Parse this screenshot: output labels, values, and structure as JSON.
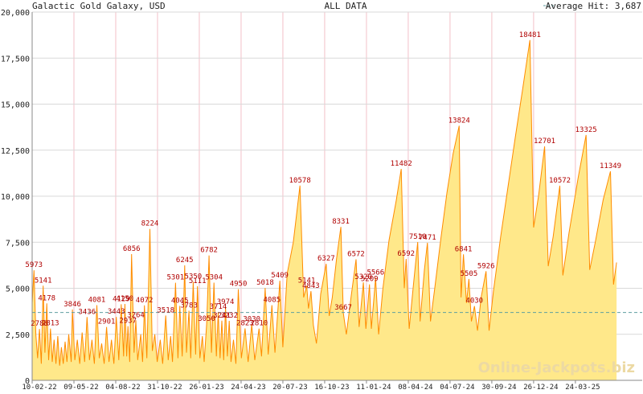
{
  "header": {
    "left": "Galactic Gold Galaxy, USD",
    "center": "ALL DATA",
    "right": "Average Hit: 3,687"
  },
  "watermark": "Online-Jackpots.biz",
  "colors": {
    "fill": "#ffe88a",
    "line": "#ff8c00",
    "avg": "#5f9ea0",
    "label": "#b00000",
    "grid_h": "#d9d9d9",
    "grid_v": "#f3c0c8",
    "watermark": "#ecd9a3"
  },
  "chart_data": {
    "type": "area",
    "ylim": [
      0,
      20000
    ],
    "y_ticks": [
      "0",
      "2,500",
      "5,000",
      "7,500",
      "10,000",
      "12,500",
      "15,000",
      "17,500",
      "20,000"
    ],
    "y_tick_values": [
      0,
      2500,
      5000,
      7500,
      10000,
      12500,
      15000,
      17500,
      20000
    ],
    "x_ticks": [
      "10-02-22",
      "09-05-22",
      "04-08-22",
      "31-10-22",
      "26-01-23",
      "24-04-23",
      "20-07-23",
      "16-10-23",
      "11-01-24",
      "08-04-24",
      "04-07-24",
      "30-09-24",
      "26-12-24",
      "24-03-25"
    ],
    "x_range": [
      0,
      100
    ],
    "x_tick_positions": [
      0,
      6.85,
      13.7,
      20.55,
      27.4,
      34.25,
      41.1,
      47.95,
      54.8,
      61.65,
      68.5,
      75.35,
      82.2,
      89.05
    ],
    "average": 3687,
    "grid": true,
    "series": [
      {
        "values": [
          [
            0,
            4200
          ],
          [
            0.3,
            5973
          ],
          [
            0.6,
            2500
          ],
          [
            0.9,
            1200
          ],
          [
            1.2,
            2788
          ],
          [
            1.5,
            900
          ],
          [
            1.8,
            5141
          ],
          [
            2.1,
            1500
          ],
          [
            2.4,
            4178
          ],
          [
            2.7,
            1100
          ],
          [
            3.0,
            2813
          ],
          [
            3.3,
            1000
          ],
          [
            3.6,
            2200
          ],
          [
            3.9,
            900
          ],
          [
            4.2,
            2400
          ],
          [
            4.5,
            800
          ],
          [
            4.8,
            1800
          ],
          [
            5.1,
            900
          ],
          [
            5.4,
            2100
          ],
          [
            5.7,
            1000
          ],
          [
            6.0,
            2500
          ],
          [
            6.4,
            1000
          ],
          [
            6.6,
            3846
          ],
          [
            7.0,
            1100
          ],
          [
            7.4,
            2200
          ],
          [
            7.8,
            900
          ],
          [
            8.2,
            2600
          ],
          [
            8.6,
            1000
          ],
          [
            9.0,
            3436
          ],
          [
            9.4,
            1100
          ],
          [
            9.8,
            2200
          ],
          [
            10.2,
            900
          ],
          [
            10.6,
            4081
          ],
          [
            11.0,
            1200
          ],
          [
            11.4,
            2000
          ],
          [
            11.8,
            900
          ],
          [
            12.2,
            2901
          ],
          [
            12.6,
            1000
          ],
          [
            13.0,
            2200
          ],
          [
            13.4,
            900
          ],
          [
            13.8,
            3443
          ],
          [
            14.2,
            1100
          ],
          [
            14.6,
            4129
          ],
          [
            15.0,
            1300
          ],
          [
            15.2,
            4150
          ],
          [
            15.5,
            1300
          ],
          [
            15.7,
            2937
          ],
          [
            16.0,
            1000
          ],
          [
            16.3,
            6856
          ],
          [
            16.7,
            1500
          ],
          [
            17.0,
            3264
          ],
          [
            17.3,
            1100
          ],
          [
            17.8,
            2500
          ],
          [
            18.1,
            1000
          ],
          [
            18.4,
            4072
          ],
          [
            18.8,
            1200
          ],
          [
            19.3,
            8224
          ],
          [
            19.7,
            1600
          ],
          [
            20.1,
            2500
          ],
          [
            20.5,
            1000
          ],
          [
            21.0,
            2200
          ],
          [
            21.4,
            900
          ],
          [
            21.9,
            3518
          ],
          [
            22.3,
            1100
          ],
          [
            22.7,
            2400
          ],
          [
            23.0,
            1000
          ],
          [
            23.5,
            5301
          ],
          [
            23.9,
            1200
          ],
          [
            24.2,
            4045
          ],
          [
            24.6,
            1300
          ],
          [
            25.0,
            6245
          ],
          [
            25.3,
            1500
          ],
          [
            25.7,
            3783
          ],
          [
            26.0,
            1200
          ],
          [
            26.4,
            5350
          ],
          [
            26.8,
            1400
          ],
          [
            27.1,
            5111
          ],
          [
            27.5,
            1200
          ],
          [
            27.9,
            2400
          ],
          [
            28.2,
            1000
          ],
          [
            28.6,
            3050
          ],
          [
            29.0,
            6782
          ],
          [
            29.4,
            1500
          ],
          [
            29.8,
            5304
          ],
          [
            30.2,
            1300
          ],
          [
            30.5,
            3714
          ],
          [
            30.8,
            1200
          ],
          [
            31.1,
            3241
          ],
          [
            31.4,
            1100
          ],
          [
            31.7,
            3974
          ],
          [
            32.0,
            1300
          ],
          [
            32.3,
            3232
          ],
          [
            32.6,
            1000
          ],
          [
            33.0,
            2200
          ],
          [
            33.4,
            900
          ],
          [
            33.8,
            4950
          ],
          [
            34.3,
            1200
          ],
          [
            34.9,
            2823
          ],
          [
            35.4,
            1000
          ],
          [
            36.0,
            3030
          ],
          [
            36.5,
            1100
          ],
          [
            37.2,
            2810
          ],
          [
            37.6,
            1300
          ],
          [
            38.2,
            5018
          ],
          [
            38.7,
            1400
          ],
          [
            39.3,
            4085
          ],
          [
            39.8,
            1500
          ],
          [
            40.6,
            5409
          ],
          [
            41.1,
            1800
          ],
          [
            41.8,
            5800
          ],
          [
            42.8,
            7500
          ],
          [
            43.9,
            10578
          ],
          [
            44.5,
            4500
          ],
          [
            45.0,
            5141
          ],
          [
            45.3,
            3900
          ],
          [
            45.7,
            4843
          ],
          [
            46.1,
            3000
          ],
          [
            46.6,
            2000
          ],
          [
            47.3,
            4700
          ],
          [
            48.2,
            6327
          ],
          [
            48.7,
            3500
          ],
          [
            49.2,
            4500
          ],
          [
            49.9,
            6600
          ],
          [
            50.6,
            8331
          ],
          [
            51.0,
            3667
          ],
          [
            51.5,
            2500
          ],
          [
            52.3,
            4600
          ],
          [
            53.1,
            6572
          ],
          [
            53.6,
            2900
          ],
          [
            54.3,
            5320
          ],
          [
            54.7,
            2800
          ],
          [
            55.3,
            5209
          ],
          [
            55.6,
            2800
          ],
          [
            56.3,
            5566
          ],
          [
            56.8,
            2500
          ],
          [
            57.5,
            5000
          ],
          [
            58.5,
            7600
          ],
          [
            59.7,
            9800
          ],
          [
            60.5,
            11482
          ],
          [
            61.0,
            5000
          ],
          [
            61.3,
            6592
          ],
          [
            61.8,
            2800
          ],
          [
            62.5,
            5200
          ],
          [
            63.2,
            7510
          ],
          [
            63.6,
            3200
          ],
          [
            64.3,
            6000
          ],
          [
            64.8,
            7471
          ],
          [
            65.3,
            3200
          ],
          [
            66.0,
            5000
          ],
          [
            67.0,
            7700
          ],
          [
            68.0,
            10200
          ],
          [
            69.0,
            12300
          ],
          [
            70.0,
            13824
          ],
          [
            70.3,
            4500
          ],
          [
            70.7,
            6841
          ],
          [
            71.2,
            4200
          ],
          [
            71.6,
            5505
          ],
          [
            72.0,
            3200
          ],
          [
            72.5,
            4030
          ],
          [
            73.0,
            2700
          ],
          [
            73.6,
            4500
          ],
          [
            74.4,
            5926
          ],
          [
            74.9,
            2700
          ],
          [
            75.6,
            4800
          ],
          [
            76.8,
            7800
          ],
          [
            78.0,
            10500
          ],
          [
            79.2,
            13200
          ],
          [
            80.4,
            15800
          ],
          [
            81.6,
            18481
          ],
          [
            82.2,
            8300
          ],
          [
            83.0,
            10000
          ],
          [
            84.0,
            12701
          ],
          [
            84.6,
            6200
          ],
          [
            85.4,
            7800
          ],
          [
            86.5,
            10572
          ],
          [
            87.0,
            5700
          ],
          [
            88.0,
            8000
          ],
          [
            89.5,
            11000
          ],
          [
            90.8,
            13325
          ],
          [
            91.4,
            6000
          ],
          [
            92.3,
            7500
          ],
          [
            93.6,
            9800
          ],
          [
            94.8,
            11349
          ],
          [
            95.3,
            5200
          ],
          [
            95.8,
            6400
          ]
        ]
      }
    ],
    "annotations": [
      {
        "x": 0.3,
        "y": 5973,
        "text": "5973"
      },
      {
        "x": 1.8,
        "y": 5141,
        "text": "5141"
      },
      {
        "x": 2.4,
        "y": 4178,
        "text": "4178"
      },
      {
        "x": 1.2,
        "y": 2788,
        "text": "2788"
      },
      {
        "x": 3.0,
        "y": 2813,
        "text": "2813"
      },
      {
        "x": 6.6,
        "y": 3846,
        "text": "3846"
      },
      {
        "x": 9.0,
        "y": 3436,
        "text": "3436"
      },
      {
        "x": 10.6,
        "y": 4081,
        "text": "4081"
      },
      {
        "x": 12.2,
        "y": 2901,
        "text": "2901"
      },
      {
        "x": 13.8,
        "y": 3443,
        "text": "3443"
      },
      {
        "x": 14.6,
        "y": 4129,
        "text": "4129"
      },
      {
        "x": 15.2,
        "y": 4150,
        "text": "4150"
      },
      {
        "x": 15.7,
        "y": 2937,
        "text": "2937"
      },
      {
        "x": 16.3,
        "y": 6856,
        "text": "6856"
      },
      {
        "x": 17.0,
        "y": 3264,
        "text": "3264"
      },
      {
        "x": 18.4,
        "y": 4072,
        "text": "4072"
      },
      {
        "x": 19.3,
        "y": 8224,
        "text": "8224"
      },
      {
        "x": 21.9,
        "y": 3518,
        "text": "3518"
      },
      {
        "x": 23.5,
        "y": 5301,
        "text": "5301"
      },
      {
        "x": 24.2,
        "y": 4045,
        "text": "4045"
      },
      {
        "x": 25.0,
        "y": 6245,
        "text": "6245"
      },
      {
        "x": 25.7,
        "y": 3783,
        "text": "3783"
      },
      {
        "x": 26.4,
        "y": 5350,
        "text": "5350"
      },
      {
        "x": 27.1,
        "y": 5111,
        "text": "5111"
      },
      {
        "x": 28.6,
        "y": 3050,
        "text": "3050"
      },
      {
        "x": 29.0,
        "y": 6782,
        "text": "6782"
      },
      {
        "x": 29.8,
        "y": 5304,
        "text": "5304"
      },
      {
        "x": 30.5,
        "y": 3714,
        "text": "3714"
      },
      {
        "x": 31.1,
        "y": 3241,
        "text": "3241"
      },
      {
        "x": 31.7,
        "y": 3974,
        "text": "3974"
      },
      {
        "x": 32.3,
        "y": 3232,
        "text": "3232"
      },
      {
        "x": 33.8,
        "y": 4950,
        "text": "4950"
      },
      {
        "x": 34.9,
        "y": 2823,
        "text": "2823"
      },
      {
        "x": 36.0,
        "y": 3030,
        "text": "3030"
      },
      {
        "x": 37.2,
        "y": 2810,
        "text": "2810"
      },
      {
        "x": 38.2,
        "y": 5018,
        "text": "5018"
      },
      {
        "x": 39.3,
        "y": 4085,
        "text": "4085"
      },
      {
        "x": 40.6,
        "y": 5409,
        "text": "5409"
      },
      {
        "x": 43.9,
        "y": 10578,
        "text": "10578"
      },
      {
        "x": 45.0,
        "y": 5141,
        "text": "5141"
      },
      {
        "x": 45.7,
        "y": 4843,
        "text": "4843"
      },
      {
        "x": 48.2,
        "y": 6327,
        "text": "6327"
      },
      {
        "x": 50.6,
        "y": 8331,
        "text": "8331"
      },
      {
        "x": 51.0,
        "y": 3667,
        "text": "3667"
      },
      {
        "x": 53.1,
        "y": 6572,
        "text": "6572"
      },
      {
        "x": 54.3,
        "y": 5320,
        "text": "5320"
      },
      {
        "x": 55.3,
        "y": 5209,
        "text": "5209"
      },
      {
        "x": 56.3,
        "y": 5566,
        "text": "5566"
      },
      {
        "x": 60.5,
        "y": 11482,
        "text": "11482"
      },
      {
        "x": 61.3,
        "y": 6592,
        "text": "6592"
      },
      {
        "x": 63.2,
        "y": 7510,
        "text": "7510"
      },
      {
        "x": 64.8,
        "y": 7471,
        "text": "7471"
      },
      {
        "x": 70.0,
        "y": 13824,
        "text": "13824"
      },
      {
        "x": 70.7,
        "y": 6841,
        "text": "6841"
      },
      {
        "x": 71.6,
        "y": 5505,
        "text": "5505"
      },
      {
        "x": 72.5,
        "y": 4030,
        "text": "4030"
      },
      {
        "x": 74.4,
        "y": 5926,
        "text": "5926"
      },
      {
        "x": 81.6,
        "y": 18481,
        "text": "18481"
      },
      {
        "x": 84.0,
        "y": 12701,
        "text": "12701"
      },
      {
        "x": 86.5,
        "y": 10572,
        "text": "10572"
      },
      {
        "x": 90.8,
        "y": 13325,
        "text": "13325"
      },
      {
        "x": 94.8,
        "y": 11349,
        "text": "11349"
      }
    ]
  }
}
